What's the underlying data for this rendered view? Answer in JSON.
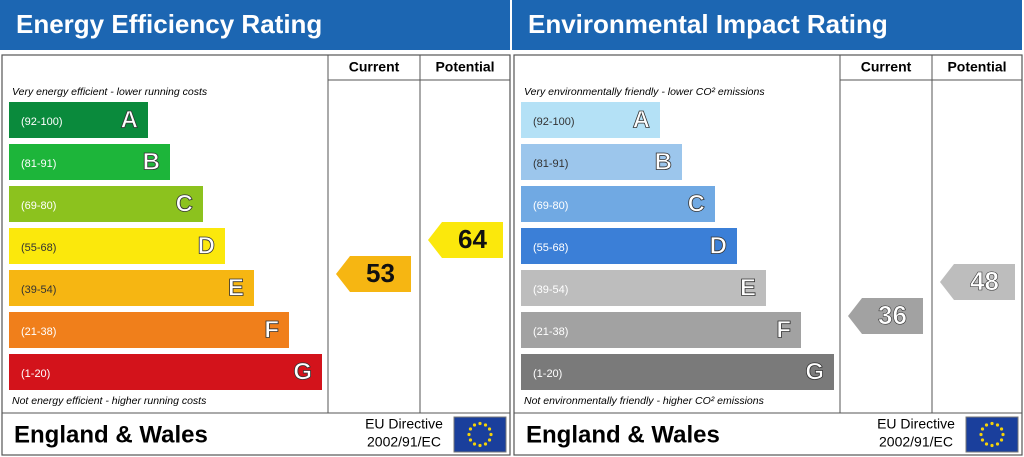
{
  "panels": [
    {
      "title": "Energy Efficiency Rating",
      "current_header": "Current",
      "potential_header": "Potential",
      "top_note": "Very energy efficient - lower running costs",
      "bottom_note": "Not energy efficient - higher running costs",
      "bands": [
        {
          "range": "(92-100)",
          "letter": "A",
          "color": "#0a8a3c",
          "text_color": "#ffffff"
        },
        {
          "range": "(81-91)",
          "letter": "B",
          "color": "#1db53a",
          "text_color": "#ffffff"
        },
        {
          "range": "(69-80)",
          "letter": "C",
          "color": "#8cc21e",
          "text_color": "#ffffff"
        },
        {
          "range": "(55-68)",
          "letter": "D",
          "color": "#fbe80c",
          "text_color": "#333333"
        },
        {
          "range": "(39-54)",
          "letter": "E",
          "color": "#f6b612",
          "text_color": "#333333"
        },
        {
          "range": "(21-38)",
          "letter": "F",
          "color": "#f07f1b",
          "text_color": "#ffffff"
        },
        {
          "range": "(1-20)",
          "letter": "G",
          "color": "#d3131b",
          "text_color": "#ffffff"
        }
      ],
      "current": {
        "value": 53,
        "color": "#f6b612"
      },
      "potential": {
        "value": 64,
        "color": "#fbe80c"
      },
      "footer": {
        "region": "England & Wales",
        "directive_line1": "EU Directive",
        "directive_line2": "2002/91/EC"
      }
    },
    {
      "title": "Environmental Impact Rating",
      "current_header": "Current",
      "potential_header": "Potential",
      "top_note": "Very environmentally friendly - lower CO² emissions",
      "bottom_note": "Not environmentally friendly - higher CO² emissions",
      "bands": [
        {
          "range": "(92-100)",
          "letter": "A",
          "color": "#b4e1f6",
          "text_color": "#333333"
        },
        {
          "range": "(81-91)",
          "letter": "B",
          "color": "#9cc6ec",
          "text_color": "#333333"
        },
        {
          "range": "(69-80)",
          "letter": "C",
          "color": "#70a9e3",
          "text_color": "#ffffff"
        },
        {
          "range": "(55-68)",
          "letter": "D",
          "color": "#3b7fd7",
          "text_color": "#ffffff"
        },
        {
          "range": "(39-54)",
          "letter": "E",
          "color": "#bdbdbd",
          "text_color": "#ffffff"
        },
        {
          "range": "(21-38)",
          "letter": "F",
          "color": "#a2a2a2",
          "text_color": "#ffffff"
        },
        {
          "range": "(1-20)",
          "letter": "G",
          "color": "#7a7a7a",
          "text_color": "#ffffff"
        }
      ],
      "current": {
        "value": 36,
        "color": "#a2a2a2"
      },
      "potential": {
        "value": 48,
        "color": "#bdbdbd"
      },
      "footer": {
        "region": "England & Wales",
        "directive_line1": "EU Directive",
        "directive_line2": "2002/91/EC"
      }
    }
  ]
}
